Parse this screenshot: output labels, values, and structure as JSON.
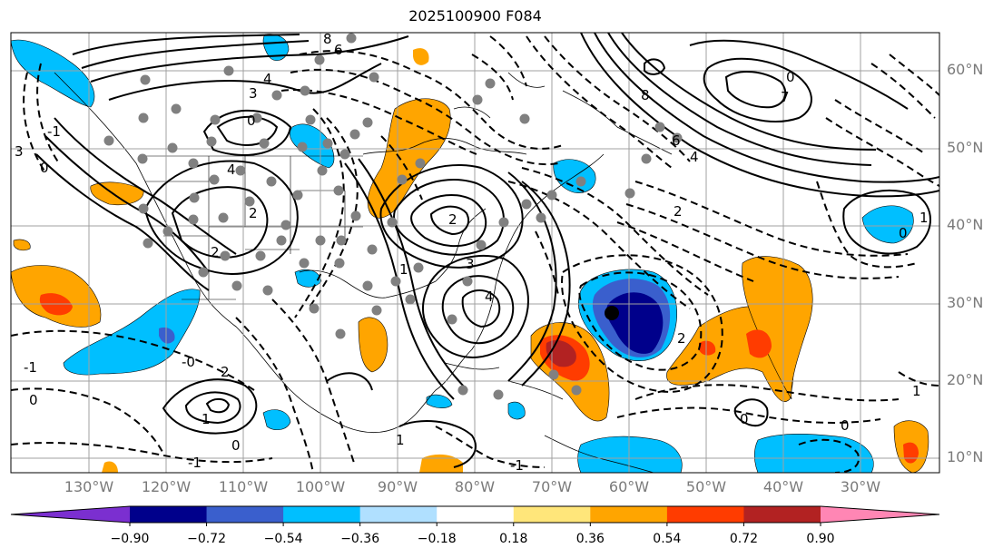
{
  "title": "2025100900 F084",
  "latitude_labels": [
    "60°N",
    "50°N",
    "40°N",
    "30°N",
    "20°N",
    "10°N"
  ],
  "longitude_labels": [
    "130°W",
    "120°W",
    "110°W",
    "100°W",
    "90°W",
    "80°W",
    "70°W",
    "60°W",
    "50°W",
    "40°W",
    "30°W"
  ],
  "contour_labels": [
    "8",
    "6",
    "4",
    "3",
    "0",
    "3",
    "4",
    "2",
    "2",
    "-1",
    "0",
    "1",
    "2",
    "3",
    "4",
    "0",
    "8",
    "6",
    "4",
    "2",
    "0",
    "7",
    "1",
    "-1",
    "0",
    "1",
    "-0",
    "2",
    "1",
    "0",
    "-1",
    "0",
    "1",
    "2",
    "0",
    "-1"
  ],
  "colorbar": {
    "ticks": [
      "−0.90",
      "−0.72",
      "−0.54",
      "−0.36",
      "−0.18",
      "0.18",
      "0.36",
      "0.54",
      "0.72",
      "0.90"
    ],
    "colors": [
      "#7b2fd0",
      "#00008b",
      "#3a5fcd",
      "#00bfff",
      "#b0e0ff",
      "#ffffff",
      "#ffe67a",
      "#ffa500",
      "#ff3c00",
      "#b22222",
      "#ff86b4"
    ]
  },
  "colors": {
    "neg_strong": "#00008b",
    "neg_mid": "#3a5fcd",
    "neg_light": "#00bfff",
    "pos_light": "#ffa500",
    "pos_mid": "#ff3c00",
    "pos_strong": "#b22222",
    "station": "#808080"
  }
}
